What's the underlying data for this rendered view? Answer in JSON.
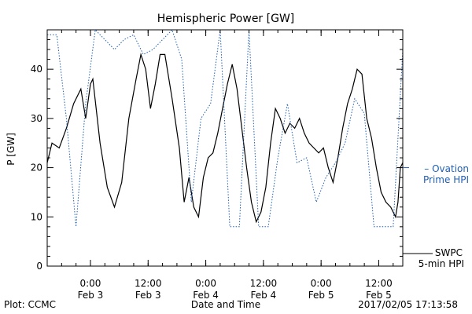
{
  "chart_data": {
    "type": "line",
    "title": "Hemispheric Power [GW]",
    "ylabel": "P [GW]",
    "xlabel": "Date and Time",
    "ylim": [
      0,
      48
    ],
    "yticks": [
      0,
      10,
      20,
      30,
      40
    ],
    "xlim": [
      "2017-02-02T15:00",
      "2017-02-05T17:00"
    ],
    "xticks": [
      {
        "t": "2017-02-03T00:00",
        "time": "0:00",
        "date": "Feb 3"
      },
      {
        "t": "2017-02-03T12:00",
        "time": "12:00",
        "date": "Feb 3"
      },
      {
        "t": "2017-02-04T00:00",
        "time": "0:00",
        "date": "Feb 4"
      },
      {
        "t": "2017-02-04T12:00",
        "time": "12:00",
        "date": "Feb 4"
      },
      {
        "t": "2017-02-05T00:00",
        "time": "0:00",
        "date": "Feb 5"
      },
      {
        "t": "2017-02-05T12:00",
        "time": "12:00",
        "date": "Feb 5"
      }
    ],
    "grid": false,
    "legend_position": "right",
    "series": [
      {
        "name": "SWPC 5-min HPI",
        "legend_lines": [
          "SWPC",
          "5-min HPI"
        ],
        "style": "solid",
        "color": "#000000",
        "points": [
          [
            "2017-02-02T15:00",
            21
          ],
          [
            "2017-02-02T16:00",
            25
          ],
          [
            "2017-02-02T17:30",
            24
          ],
          [
            "2017-02-02T19:00",
            28
          ],
          [
            "2017-02-02T20:30",
            33
          ],
          [
            "2017-02-02T22:00",
            36
          ],
          [
            "2017-02-02T23:00",
            30
          ],
          [
            "2017-02-03T00:00",
            37
          ],
          [
            "2017-02-03T00:30",
            38
          ],
          [
            "2017-02-03T02:00",
            25
          ],
          [
            "2017-02-03T03:30",
            16
          ],
          [
            "2017-02-03T05:00",
            12
          ],
          [
            "2017-02-03T06:30",
            17
          ],
          [
            "2017-02-03T08:00",
            30
          ],
          [
            "2017-02-03T09:30",
            38
          ],
          [
            "2017-02-03T10:30",
            43
          ],
          [
            "2017-02-03T11:30",
            40
          ],
          [
            "2017-02-03T12:30",
            32
          ],
          [
            "2017-02-03T13:30",
            37
          ],
          [
            "2017-02-03T14:30",
            43
          ],
          [
            "2017-02-03T15:30",
            43
          ],
          [
            "2017-02-03T17:00",
            34
          ],
          [
            "2017-02-03T18:30",
            24
          ],
          [
            "2017-02-03T19:30",
            13
          ],
          [
            "2017-02-03T20:30",
            18
          ],
          [
            "2017-02-03T21:30",
            12
          ],
          [
            "2017-02-03T22:30",
            10
          ],
          [
            "2017-02-03T23:30",
            18
          ],
          [
            "2017-02-04T00:30",
            22
          ],
          [
            "2017-02-04T01:30",
            23
          ],
          [
            "2017-02-04T02:30",
            27
          ],
          [
            "2017-02-04T03:30",
            32
          ],
          [
            "2017-02-04T04:30",
            37
          ],
          [
            "2017-02-04T05:30",
            41
          ],
          [
            "2017-02-04T06:30",
            36
          ],
          [
            "2017-02-04T07:30",
            28
          ],
          [
            "2017-02-04T08:30",
            20
          ],
          [
            "2017-02-04T09:30",
            13
          ],
          [
            "2017-02-04T10:30",
            9
          ],
          [
            "2017-02-04T11:30",
            11
          ],
          [
            "2017-02-04T12:30",
            16
          ],
          [
            "2017-02-04T13:30",
            25
          ],
          [
            "2017-02-04T14:30",
            32
          ],
          [
            "2017-02-04T15:30",
            30
          ],
          [
            "2017-02-04T16:30",
            27
          ],
          [
            "2017-02-04T17:30",
            29
          ],
          [
            "2017-02-04T18:30",
            28
          ],
          [
            "2017-02-04T19:30",
            30
          ],
          [
            "2017-02-04T20:30",
            27
          ],
          [
            "2017-02-04T21:30",
            25
          ],
          [
            "2017-02-04T22:30",
            24
          ],
          [
            "2017-02-04T23:30",
            23
          ],
          [
            "2017-02-05T00:30",
            24
          ],
          [
            "2017-02-05T01:30",
            20
          ],
          [
            "2017-02-05T02:30",
            17
          ],
          [
            "2017-02-05T03:30",
            22
          ],
          [
            "2017-02-05T04:30",
            28
          ],
          [
            "2017-02-05T05:30",
            33
          ],
          [
            "2017-02-05T06:30",
            36
          ],
          [
            "2017-02-05T07:30",
            40
          ],
          [
            "2017-02-05T08:30",
            39
          ],
          [
            "2017-02-05T09:30",
            30
          ],
          [
            "2017-02-05T10:30",
            26
          ],
          [
            "2017-02-05T11:30",
            20
          ],
          [
            "2017-02-05T12:30",
            15
          ],
          [
            "2017-02-05T13:30",
            13
          ],
          [
            "2017-02-05T14:30",
            12
          ],
          [
            "2017-02-05T15:30",
            10
          ],
          [
            "2017-02-05T16:00",
            13
          ],
          [
            "2017-02-05T16:30",
            20
          ],
          [
            "2017-02-05T17:00",
            21
          ]
        ]
      },
      {
        "name": "Ovation Prime HPI",
        "legend_lines": [
          "– Ovation",
          "Prime HPI"
        ],
        "style": "dotted",
        "color": "#1f5fb4",
        "points": [
          [
            "2017-02-02T15:00",
            47
          ],
          [
            "2017-02-02T17:00",
            47
          ],
          [
            "2017-02-02T19:00",
            30
          ],
          [
            "2017-02-02T21:00",
            8
          ],
          [
            "2017-02-02T23:00",
            33
          ],
          [
            "2017-02-03T01:00",
            48
          ],
          [
            "2017-02-03T03:00",
            46
          ],
          [
            "2017-02-03T05:00",
            44
          ],
          [
            "2017-02-03T07:00",
            46
          ],
          [
            "2017-02-03T09:00",
            47
          ],
          [
            "2017-02-03T11:00",
            43
          ],
          [
            "2017-02-03T13:00",
            44
          ],
          [
            "2017-02-03T15:00",
            46
          ],
          [
            "2017-02-03T17:00",
            48
          ],
          [
            "2017-02-03T19:00",
            42
          ],
          [
            "2017-02-03T21:00",
            13
          ],
          [
            "2017-02-03T23:00",
            30
          ],
          [
            "2017-02-04T01:00",
            33
          ],
          [
            "2017-02-04T03:00",
            48
          ],
          [
            "2017-02-04T05:00",
            8
          ],
          [
            "2017-02-04T07:00",
            8
          ],
          [
            "2017-02-04T09:00",
            48
          ],
          [
            "2017-02-04T11:00",
            8
          ],
          [
            "2017-02-04T13:00",
            8
          ],
          [
            "2017-02-04T15:00",
            22
          ],
          [
            "2017-02-04T17:00",
            33
          ],
          [
            "2017-02-04T19:00",
            21
          ],
          [
            "2017-02-04T21:00",
            22
          ],
          [
            "2017-02-04T23:00",
            13
          ],
          [
            "2017-02-05T01:00",
            18
          ],
          [
            "2017-02-05T03:00",
            21
          ],
          [
            "2017-02-05T05:00",
            25
          ],
          [
            "2017-02-05T07:00",
            34
          ],
          [
            "2017-02-05T09:00",
            31
          ],
          [
            "2017-02-05T11:00",
            8
          ],
          [
            "2017-02-05T13:00",
            8
          ],
          [
            "2017-02-05T15:00",
            8
          ],
          [
            "2017-02-05T17:00",
            44
          ]
        ]
      }
    ]
  },
  "footer": {
    "left": "Plot: CCMC",
    "right": "2017/02/05 17:13:58"
  }
}
